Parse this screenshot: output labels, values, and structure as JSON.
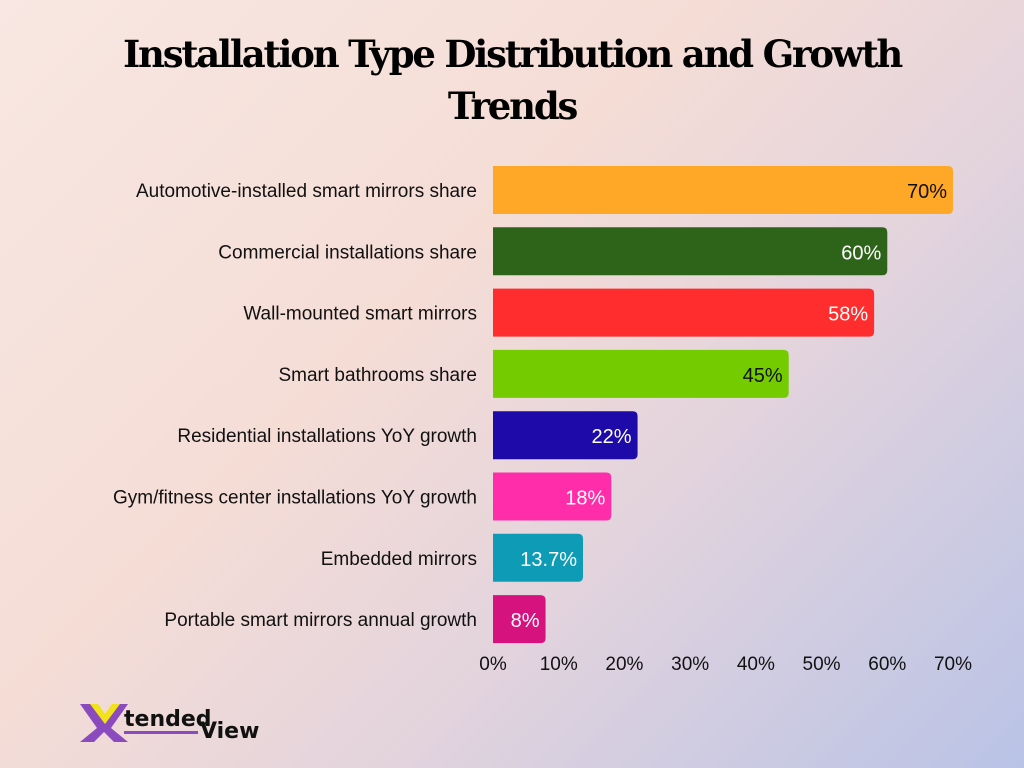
{
  "chart_data": {
    "type": "bar",
    "orientation": "horizontal",
    "title": "Installation Type Distribution and Growth Trends",
    "categories": [
      "Automotive-installed smart mirrors share",
      "Commercial installations share",
      "Wall-mounted smart mirrors",
      "Smart bathrooms share",
      "Residential installations YoY growth",
      "Gym/fitness center installations YoY growth",
      "Embedded mirrors",
      "Portable smart mirrors annual growth"
    ],
    "values": [
      70,
      60,
      58,
      45,
      22,
      18,
      13.7,
      8
    ],
    "data_labels": [
      "70%",
      "60%",
      "58%",
      "45%",
      "22%",
      "18%",
      "13.7%",
      "8%"
    ],
    "colors": [
      "#FFA726",
      "#2E641A",
      "#FF2D2D",
      "#74CC00",
      "#1E0AA8",
      "#FF2DAA",
      "#0E9BB5",
      "#D6127E"
    ],
    "label_colors": [
      "#111111",
      "#FFFFFF",
      "#FFFFFF",
      "#111111",
      "#FFFFFF",
      "#FFFFFF",
      "#FFFFFF",
      "#FFFFFF"
    ],
    "xlabel": "",
    "ylabel": "",
    "xlim": [
      0,
      70
    ],
    "x_ticks": [
      "0%",
      "10%",
      "20%",
      "30%",
      "40%",
      "50%",
      "60%",
      "70%"
    ],
    "grid": false,
    "legend": "none"
  },
  "logo": {
    "text": "XtendedView",
    "part1": "tended",
    "part2": "View"
  }
}
